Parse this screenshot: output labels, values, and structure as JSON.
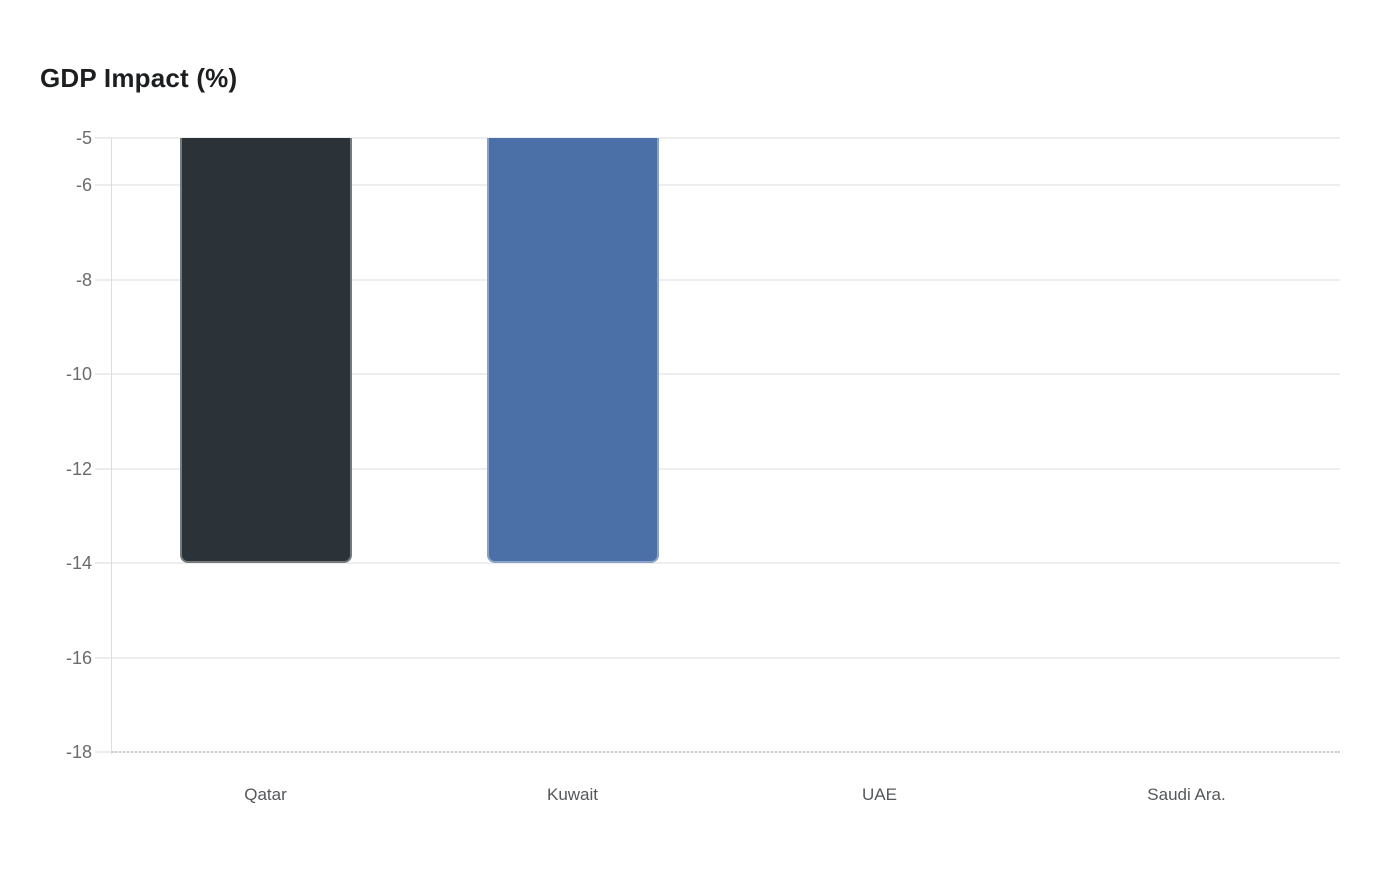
{
  "chart_data": {
    "type": "bar",
    "title": "GDP Impact (%)",
    "categories": [
      "Qatar",
      "Kuwait",
      "UAE",
      "Saudi Ara."
    ],
    "values": [
      -14,
      -14,
      null,
      null
    ],
    "bar_colors": [
      "#2c3338",
      "#4b70a8",
      null,
      null
    ],
    "visible_bar_top": -5,
    "ylim": [
      -18,
      -5
    ],
    "yticks": [
      -5,
      -6,
      -8,
      -10,
      -12,
      -14,
      -16,
      -18
    ],
    "xlabel": "",
    "ylabel": "",
    "grid": true,
    "legend": "none",
    "colors": {
      "background": "#ffffff",
      "title_text": "#1c1e20",
      "axis_label_text": "#696b6d",
      "category_label_text": "#55585b",
      "gridline": "#eeeeee",
      "axis_line": "#dbdee1"
    }
  }
}
